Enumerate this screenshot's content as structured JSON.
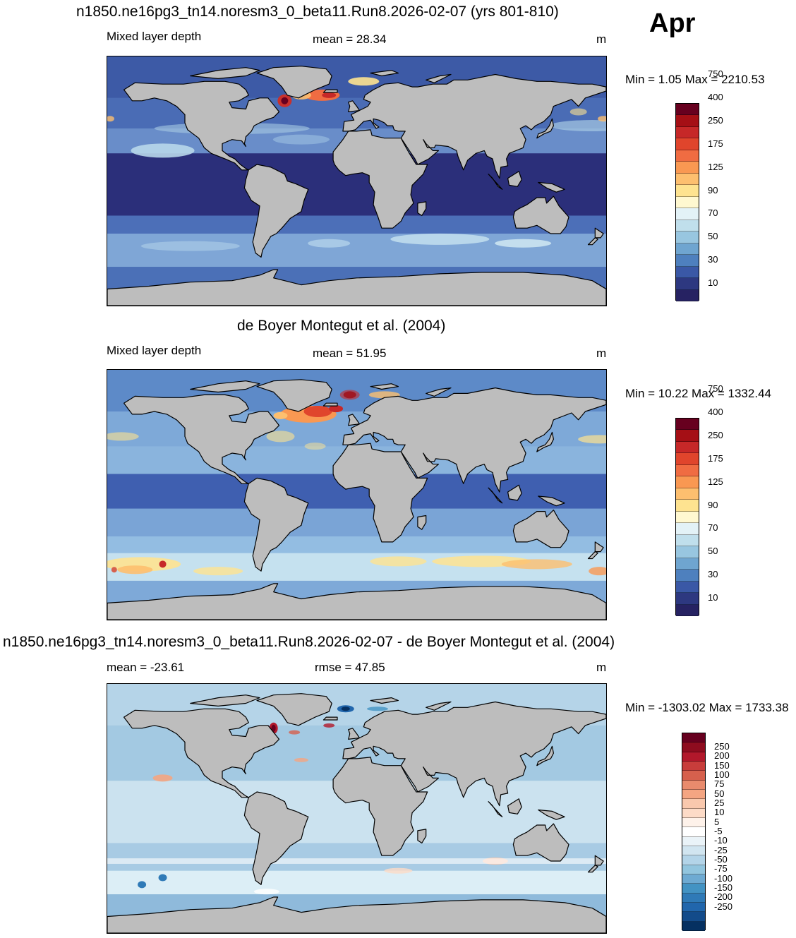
{
  "month": "Apr",
  "panels": [
    {
      "title": "n1850.ne16pg3_tn14.noresm3_0_beta11.Run8.2026-02-07 (yrs 801-810)",
      "left_label": "Mixed layer depth",
      "center_label": "mean =  28.34",
      "right_label": "m",
      "minmax": "Min =   1.05 Max = 2210.53",
      "colorbar": {
        "colors": [
          "#67001f",
          "#a50f15",
          "#c62828",
          "#e0452c",
          "#f06c42",
          "#f99852",
          "#fdbf6f",
          "#fee390",
          "#fff8d0",
          "#e3f2f7",
          "#c0dfec",
          "#98c6e0",
          "#6fa5d0",
          "#4e80be",
          "#3a58a6",
          "#2d3880",
          "#262262"
        ],
        "labels": [
          "750",
          "400",
          "250",
          "175",
          "125",
          "90",
          "70",
          "50",
          "30",
          "10"
        ]
      },
      "map_style": "model"
    },
    {
      "title": "de Boyer Montegut et al. (2004)",
      "left_label": "Mixed layer depth",
      "center_label": "mean =  51.95",
      "right_label": "m",
      "minmax": "Min =  10.22 Max = 1332.44",
      "colorbar": {
        "colors": [
          "#67001f",
          "#a50f15",
          "#c62828",
          "#e0452c",
          "#f06c42",
          "#f99852",
          "#fdbf6f",
          "#fee390",
          "#fff8d0",
          "#e3f2f7",
          "#c0dfec",
          "#98c6e0",
          "#6fa5d0",
          "#4e80be",
          "#3a58a6",
          "#2d3880",
          "#262262"
        ],
        "labels": [
          "750",
          "400",
          "250",
          "175",
          "125",
          "90",
          "70",
          "50",
          "30",
          "10"
        ]
      },
      "map_style": "obs"
    },
    {
      "title": "n1850.ne16pg3_tn14.noresm3_0_beta11.Run8.2026-02-07 - de Boyer Montegut et al. (2004)",
      "left_label": "mean = -23.61",
      "center_label": "rmse =  47.85",
      "right_label": "m",
      "minmax": "Min = -1303.02 Max = 1733.38",
      "colorbar": {
        "colors": [
          "#67001f",
          "#8e0c1f",
          "#b2182b",
          "#c83d3b",
          "#d6604d",
          "#e98b6d",
          "#f4a582",
          "#f9c8ad",
          "#fddbc7",
          "#fef2ea",
          "#ffffff",
          "#eaf3f8",
          "#d1e5f0",
          "#b3d4e8",
          "#92c5de",
          "#6eaad2",
          "#4393c3",
          "#2f7ab7",
          "#2166ac",
          "#134b8a",
          "#053061"
        ],
        "labels": [
          "250",
          "200",
          "150",
          "100",
          "75",
          "50",
          "25",
          "10",
          "5",
          "-5",
          "-10",
          "-25",
          "-50",
          "-75",
          "-100",
          "-150",
          "-200",
          "-250"
        ]
      },
      "map_style": "diff"
    }
  ]
}
